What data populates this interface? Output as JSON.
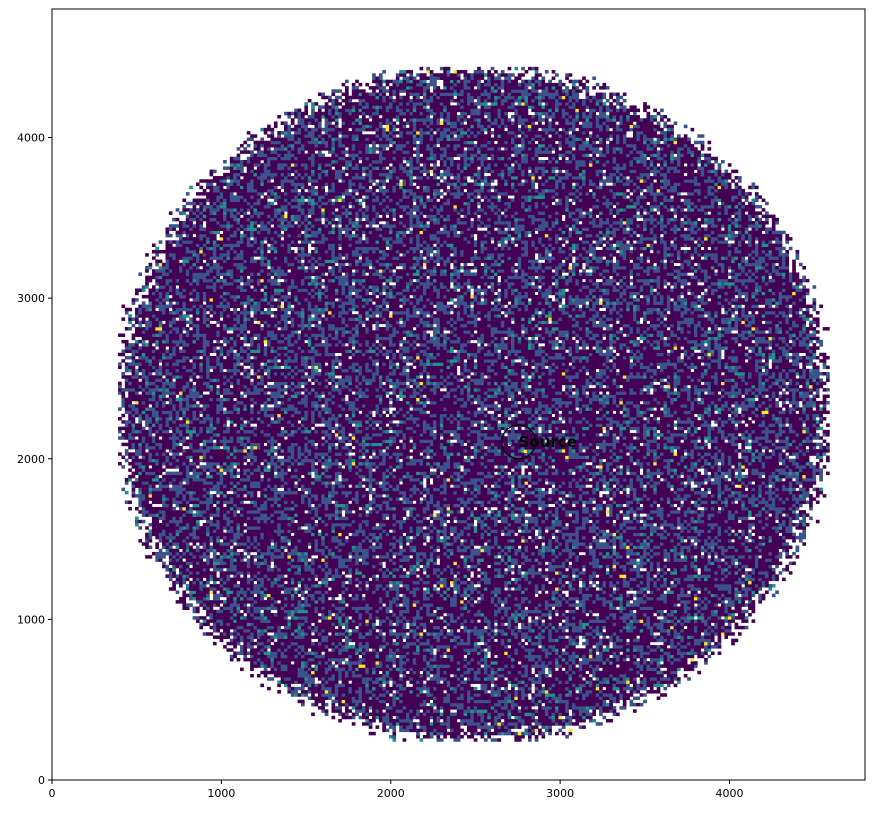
{
  "chart_data": {
    "type": "heatmap",
    "title": "",
    "xlabel": "",
    "ylabel": "",
    "xlim": [
      0,
      4800
    ],
    "ylim": [
      0,
      4800
    ],
    "x_ticks": [
      0,
      1000,
      2000,
      3000,
      4000
    ],
    "y_ticks": [
      0,
      1000,
      2000,
      3000,
      4000
    ],
    "x_tick_labels": [
      "0",
      "1000",
      "2000",
      "3000",
      "4000"
    ],
    "y_tick_labels": [
      "0",
      "1000",
      "2000",
      "3000",
      "4000"
    ],
    "grid": false,
    "colormap": "viridis",
    "count_field": {
      "shape": "disk",
      "center": [
        2480,
        2330
      ],
      "radius": 2090,
      "bin_size": 20
    },
    "annotations": [
      {
        "label": "Source",
        "x": 2755,
        "y": 2105,
        "marker": "circle",
        "marker_radius": 100
      }
    ],
    "colors": {
      "background": "#ffffff",
      "low": "#440154",
      "mid": "#3b528b",
      "high": "#21918c",
      "peak": "#fde725"
    }
  }
}
